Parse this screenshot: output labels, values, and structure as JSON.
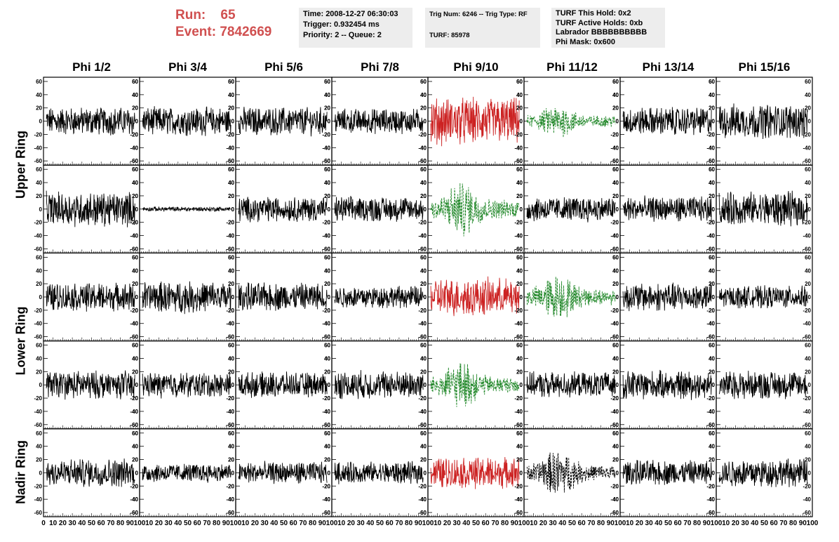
{
  "header": {
    "run_label": "Run:",
    "run_value": "65",
    "event_label": "Event:",
    "event_value": "7842669"
  },
  "info_boxes": [
    {
      "lines": [
        "Time: 2008-12-27 06:30:03",
        "Trigger: 0.932454 ms",
        "Priority: 2 -- Queue: 2"
      ]
    },
    {
      "lines": [
        "Trig Num: 6246 -- Trig Type: RF",
        "",
        "TURF: 85978"
      ]
    },
    {
      "lines": [
        "TURF This Hold: 0x2",
        "TURF Active Holds: 0xb",
        "Labrador BBBBBBBBBB",
        "Phi Mask: 0x600"
      ]
    }
  ],
  "columns": [
    "Phi 1/2",
    "Phi 3/4",
    "Phi 5/6",
    "Phi 7/8",
    "Phi 9/10",
    "Phi 11/12",
    "Phi 13/14",
    "Phi 15/16"
  ],
  "ring_labels": [
    {
      "label": "Upper Ring",
      "rows": [
        0,
        1
      ]
    },
    {
      "label": "Lower Ring",
      "rows": [
        2,
        3
      ]
    },
    {
      "label": "Nadir Ring",
      "rows": [
        4
      ]
    }
  ],
  "colors": {
    "normal": "#000000",
    "triggered": "#cc2222",
    "masked": "#22882a",
    "info_bg": "#ededed",
    "run_text": "#d05050"
  },
  "chart_data": {
    "type": "line",
    "title": "",
    "xlabel": "",
    "ylabel": "",
    "xlim": [
      0,
      100
    ],
    "ylim": [
      -60,
      60
    ],
    "grid": false,
    "y_ticks": [
      60,
      40,
      20,
      0,
      -20,
      -40,
      -60
    ],
    "x_ticks": [
      "0",
      "10",
      "20",
      "30",
      "40",
      "50",
      "60",
      "70",
      "80",
      "90",
      "100"
    ],
    "x_tick_label_row": "0 10 20 30 40 50 60 70 80 90 100",
    "panels": [
      {
        "row": 0,
        "col": 0,
        "style": "normal",
        "amplitude": 18
      },
      {
        "row": 0,
        "col": 1,
        "style": "normal",
        "amplitude": 18
      },
      {
        "row": 0,
        "col": 2,
        "style": "normal",
        "amplitude": 18
      },
      {
        "row": 0,
        "col": 3,
        "style": "normal",
        "amplitude": 16
      },
      {
        "row": 0,
        "col": 4,
        "style": "triggered",
        "amplitude": 30
      },
      {
        "row": 0,
        "col": 5,
        "style": "masked",
        "amplitude": 16
      },
      {
        "row": 0,
        "col": 6,
        "style": "normal",
        "amplitude": 18
      },
      {
        "row": 0,
        "col": 7,
        "style": "normal",
        "amplitude": 22
      },
      {
        "row": 1,
        "col": 0,
        "style": "normal",
        "amplitude": 22
      },
      {
        "row": 1,
        "col": 1,
        "style": "normal",
        "amplitude": 3
      },
      {
        "row": 1,
        "col": 2,
        "style": "normal",
        "amplitude": 16
      },
      {
        "row": 1,
        "col": 3,
        "style": "normal",
        "amplitude": 16
      },
      {
        "row": 1,
        "col": 4,
        "style": "masked",
        "amplitude": 26
      },
      {
        "row": 1,
        "col": 5,
        "style": "normal",
        "amplitude": 16
      },
      {
        "row": 1,
        "col": 6,
        "style": "normal",
        "amplitude": 16
      },
      {
        "row": 1,
        "col": 7,
        "style": "normal",
        "amplitude": 22
      },
      {
        "row": 2,
        "col": 0,
        "style": "normal",
        "amplitude": 18
      },
      {
        "row": 2,
        "col": 1,
        "style": "normal",
        "amplitude": 20
      },
      {
        "row": 2,
        "col": 2,
        "style": "normal",
        "amplitude": 18
      },
      {
        "row": 2,
        "col": 3,
        "style": "normal",
        "amplitude": 14
      },
      {
        "row": 2,
        "col": 4,
        "style": "triggered",
        "amplitude": 24
      },
      {
        "row": 2,
        "col": 5,
        "style": "masked",
        "amplitude": 22
      },
      {
        "row": 2,
        "col": 6,
        "style": "normal",
        "amplitude": 18
      },
      {
        "row": 2,
        "col": 7,
        "style": "normal",
        "amplitude": 14
      },
      {
        "row": 3,
        "col": 0,
        "style": "normal",
        "amplitude": 18
      },
      {
        "row": 3,
        "col": 1,
        "style": "normal",
        "amplitude": 16
      },
      {
        "row": 3,
        "col": 2,
        "style": "normal",
        "amplitude": 16
      },
      {
        "row": 3,
        "col": 3,
        "style": "normal",
        "amplitude": 18
      },
      {
        "row": 3,
        "col": 4,
        "style": "masked",
        "amplitude": 22
      },
      {
        "row": 3,
        "col": 5,
        "style": "normal",
        "amplitude": 16
      },
      {
        "row": 3,
        "col": 6,
        "style": "normal",
        "amplitude": 18
      },
      {
        "row": 3,
        "col": 7,
        "style": "normal",
        "amplitude": 18
      },
      {
        "row": 4,
        "col": 0,
        "style": "normal",
        "amplitude": 18
      },
      {
        "row": 4,
        "col": 1,
        "style": "normal",
        "amplitude": 12
      },
      {
        "row": 4,
        "col": 2,
        "style": "normal",
        "amplitude": 14
      },
      {
        "row": 4,
        "col": 3,
        "style": "normal",
        "amplitude": 14
      },
      {
        "row": 4,
        "col": 4,
        "style": "triggered",
        "amplitude": 20
      },
      {
        "row": 4,
        "col": 5,
        "style": "dashed-black",
        "amplitude": 22
      },
      {
        "row": 4,
        "col": 6,
        "style": "normal",
        "amplitude": 16
      },
      {
        "row": 4,
        "col": 7,
        "style": "normal",
        "amplitude": 18
      }
    ]
  }
}
